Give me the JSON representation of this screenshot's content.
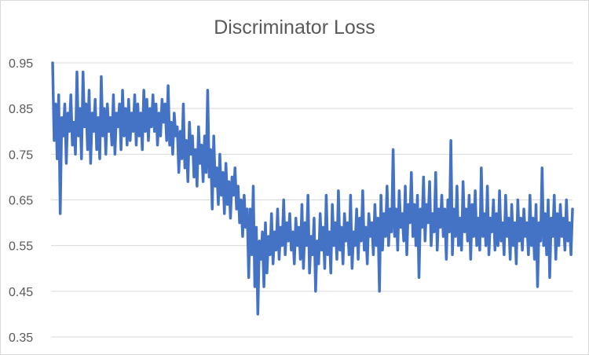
{
  "chart_data": {
    "type": "line",
    "title": "Discriminator Loss",
    "xlabel": "",
    "ylabel": "",
    "ylim": [
      0.35,
      0.95
    ],
    "yticks": [
      "0.95",
      "0.85",
      "0.75",
      "0.65",
      "0.55",
      "0.45",
      "0.35"
    ],
    "grid": true,
    "legend": "none",
    "series": [
      {
        "color": "#4472c4",
        "values": [
          0.95,
          0.78,
          0.86,
          0.74,
          0.88,
          0.62,
          0.83,
          0.79,
          0.86,
          0.73,
          0.84,
          0.8,
          0.88,
          0.77,
          0.82,
          0.75,
          0.93,
          0.79,
          0.85,
          0.74,
          0.93,
          0.81,
          0.86,
          0.76,
          0.89,
          0.73,
          0.84,
          0.8,
          0.87,
          0.76,
          0.83,
          0.74,
          0.92,
          0.79,
          0.85,
          0.75,
          0.86,
          0.8,
          0.83,
          0.77,
          0.88,
          0.75,
          0.84,
          0.81,
          0.86,
          0.76,
          0.89,
          0.79,
          0.85,
          0.77,
          0.87,
          0.78,
          0.84,
          0.8,
          0.88,
          0.77,
          0.86,
          0.79,
          0.84,
          0.76,
          0.89,
          0.8,
          0.87,
          0.78,
          0.85,
          0.81,
          0.88,
          0.8,
          0.86,
          0.77,
          0.84,
          0.79,
          0.87,
          0.82,
          0.86,
          0.78,
          0.9,
          0.77,
          0.82,
          0.75,
          0.84,
          0.79,
          0.81,
          0.71,
          0.8,
          0.74,
          0.86,
          0.72,
          0.78,
          0.69,
          0.82,
          0.75,
          0.79,
          0.7,
          0.76,
          0.68,
          0.81,
          0.73,
          0.77,
          0.69,
          0.79,
          0.71,
          0.89,
          0.7,
          0.76,
          0.63,
          0.79,
          0.68,
          0.72,
          0.64,
          0.75,
          0.66,
          0.71,
          0.62,
          0.73,
          0.64,
          0.69,
          0.61,
          0.7,
          0.66,
          0.72,
          0.63,
          0.68,
          0.6,
          0.65,
          0.57,
          0.66,
          0.59,
          0.63,
          0.48,
          0.63,
          0.53,
          0.68,
          0.46,
          0.59,
          0.4,
          0.56,
          0.52,
          0.58,
          0.46,
          0.6,
          0.49,
          0.57,
          0.53,
          0.62,
          0.51,
          0.58,
          0.54,
          0.63,
          0.52,
          0.59,
          0.55,
          0.65,
          0.53,
          0.6,
          0.56,
          0.62,
          0.54,
          0.58,
          0.51,
          0.61,
          0.55,
          0.59,
          0.52,
          0.64,
          0.5,
          0.6,
          0.55,
          0.66,
          0.49,
          0.57,
          0.53,
          0.61,
          0.45,
          0.56,
          0.51,
          0.62,
          0.54,
          0.59,
          0.5,
          0.66,
          0.53,
          0.58,
          0.49,
          0.64,
          0.55,
          0.6,
          0.52,
          0.67,
          0.54,
          0.59,
          0.51,
          0.62,
          0.56,
          0.6,
          0.53,
          0.66,
          0.5,
          0.58,
          0.55,
          0.63,
          0.52,
          0.61,
          0.56,
          0.67,
          0.54,
          0.59,
          0.51,
          0.62,
          0.57,
          0.6,
          0.53,
          0.64,
          0.55,
          0.61,
          0.45,
          0.66,
          0.54,
          0.62,
          0.57,
          0.68,
          0.55,
          0.63,
          0.58,
          0.76,
          0.57,
          0.63,
          0.54,
          0.67,
          0.59,
          0.62,
          0.56,
          0.68,
          0.53,
          0.64,
          0.6,
          0.71,
          0.57,
          0.64,
          0.55,
          0.66,
          0.48,
          0.63,
          0.59,
          0.7,
          0.56,
          0.64,
          0.6,
          0.69,
          0.55,
          0.62,
          0.58,
          0.71,
          0.54,
          0.63,
          0.59,
          0.66,
          0.57,
          0.63,
          0.52,
          0.65,
          0.58,
          0.78,
          0.53,
          0.63,
          0.57,
          0.68,
          0.55,
          0.61,
          0.54,
          0.69,
          0.58,
          0.63,
          0.56,
          0.66,
          0.52,
          0.64,
          0.57,
          0.67,
          0.55,
          0.61,
          0.54,
          0.72,
          0.57,
          0.62,
          0.55,
          0.68,
          0.53,
          0.61,
          0.58,
          0.65,
          0.54,
          0.62,
          0.55,
          0.67,
          0.56,
          0.6,
          0.53,
          0.66,
          0.57,
          0.61,
          0.52,
          0.64,
          0.55,
          0.6,
          0.51,
          0.65,
          0.56,
          0.61,
          0.54,
          0.63,
          0.57,
          0.6,
          0.53,
          0.66,
          0.55,
          0.61,
          0.52,
          0.64,
          0.46,
          0.6,
          0.56,
          0.72,
          0.55,
          0.62,
          0.53,
          0.65,
          0.48,
          0.61,
          0.57,
          0.66,
          0.52,
          0.62,
          0.55,
          0.64,
          0.57,
          0.61,
          0.54,
          0.65,
          0.56,
          0.6,
          0.53,
          0.63
        ]
      }
    ]
  }
}
